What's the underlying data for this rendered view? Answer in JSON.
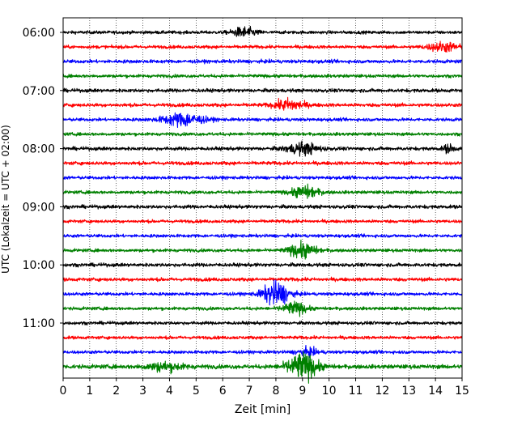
{
  "chart_data": {
    "type": "line",
    "title": "",
    "xlabel": "Zeit  [min]",
    "ylabel": "UTC (Lokalzeit = UTC + 02:00)",
    "xlim": [
      0,
      15
    ],
    "x_ticks": [
      "0",
      "1",
      "2",
      "3",
      "4",
      "5",
      "6",
      "7",
      "8",
      "9",
      "10",
      "11",
      "12",
      "13",
      "14",
      "15"
    ],
    "grid": {
      "x": true,
      "y": false,
      "style": "dotted"
    },
    "y_ticks": [
      {
        "label": "06:00",
        "row": 0
      },
      {
        "label": "07:00",
        "row": 4
      },
      {
        "label": "08:00",
        "row": 8
      },
      {
        "label": "09:00",
        "row": 12
      },
      {
        "label": "10:00",
        "row": 16
      },
      {
        "label": "11:00",
        "row": 20
      }
    ],
    "row_interval_min": 15,
    "color_cycle": [
      "#000000",
      "#ff0000",
      "#0000ff",
      "#008000"
    ],
    "traces": [
      {
        "start": "06:00",
        "base_amplitude": 0.1,
        "events": [
          {
            "t_min": 6.8,
            "amplitude": 0.3,
            "width_min": 0.45
          }
        ]
      },
      {
        "start": "06:15",
        "base_amplitude": 0.1,
        "events": [
          {
            "t_min": 14.3,
            "amplitude": 0.28,
            "width_min": 0.6
          }
        ]
      },
      {
        "start": "06:30",
        "base_amplitude": 0.11,
        "events": []
      },
      {
        "start": "06:45",
        "base_amplitude": 0.1,
        "events": []
      },
      {
        "start": "07:00",
        "base_amplitude": 0.11,
        "events": []
      },
      {
        "start": "07:15",
        "base_amplitude": 0.11,
        "events": [
          {
            "t_min": 8.5,
            "amplitude": 0.35,
            "width_min": 0.55
          }
        ]
      },
      {
        "start": "07:30",
        "base_amplitude": 0.1,
        "events": [
          {
            "t_min": 4.5,
            "amplitude": 0.42,
            "width_min": 0.75
          }
        ]
      },
      {
        "start": "07:45",
        "base_amplitude": 0.1,
        "events": []
      },
      {
        "start": "08:00",
        "base_amplitude": 0.11,
        "events": [
          {
            "t_min": 9.0,
            "amplitude": 0.35,
            "width_min": 0.6
          },
          {
            "t_min": 14.5,
            "amplitude": 0.25,
            "width_min": 0.2
          }
        ]
      },
      {
        "start": "08:15",
        "base_amplitude": 0.11,
        "events": []
      },
      {
        "start": "08:30",
        "base_amplitude": 0.1,
        "events": []
      },
      {
        "start": "08:45",
        "base_amplitude": 0.1,
        "events": [
          {
            "t_min": 9.1,
            "amplitude": 0.38,
            "width_min": 0.5
          }
        ]
      },
      {
        "start": "09:00",
        "base_amplitude": 0.11,
        "events": []
      },
      {
        "start": "09:15",
        "base_amplitude": 0.1,
        "events": []
      },
      {
        "start": "09:30",
        "base_amplitude": 0.1,
        "events": []
      },
      {
        "start": "09:45",
        "base_amplitude": 0.1,
        "events": [
          {
            "t_min": 9.0,
            "amplitude": 0.45,
            "width_min": 0.5
          }
        ]
      },
      {
        "start": "10:00",
        "base_amplitude": 0.11,
        "events": []
      },
      {
        "start": "10:15",
        "base_amplitude": 0.11,
        "events": []
      },
      {
        "start": "10:30",
        "base_amplitude": 0.1,
        "events": [
          {
            "t_min": 8.0,
            "amplitude": 0.75,
            "width_min": 0.5
          }
        ]
      },
      {
        "start": "10:45",
        "base_amplitude": 0.1,
        "events": [
          {
            "t_min": 8.7,
            "amplitude": 0.38,
            "width_min": 0.45
          }
        ]
      },
      {
        "start": "11:00",
        "base_amplitude": 0.1,
        "events": []
      },
      {
        "start": "11:15",
        "base_amplitude": 0.1,
        "events": []
      },
      {
        "start": "11:30",
        "base_amplitude": 0.1,
        "events": [
          {
            "t_min": 9.2,
            "amplitude": 0.22,
            "width_min": 0.4
          }
        ]
      },
      {
        "start": "11:45",
        "base_amplitude": 0.13,
        "events": [
          {
            "t_min": 9.0,
            "amplitude": 0.85,
            "width_min": 0.55
          },
          {
            "t_min": 3.8,
            "amplitude": 0.25,
            "width_min": 0.7
          }
        ]
      }
    ]
  }
}
